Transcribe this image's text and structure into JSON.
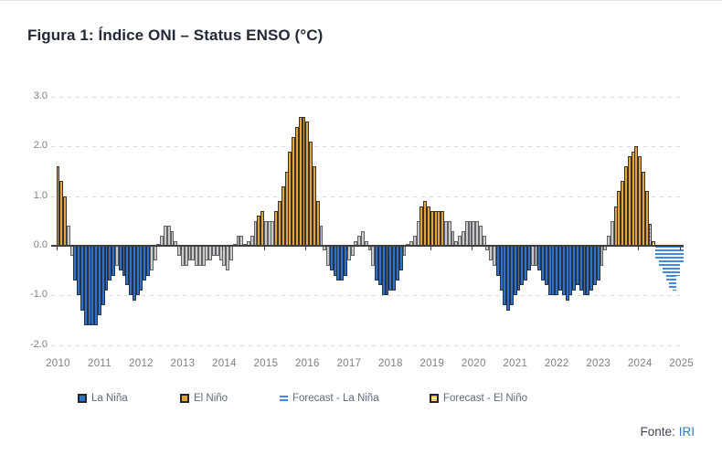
{
  "header": {
    "title": "Figura 1: Índice ONI – Status ENSO (°C)"
  },
  "legend": {
    "items": [
      {
        "label": "La Niña",
        "code": "la"
      },
      {
        "label": "El Niño",
        "code": "el"
      },
      {
        "label": "Forecast - La Niña",
        "code": "fla"
      },
      {
        "label": "Forecast - El Niño",
        "code": "fel"
      }
    ]
  },
  "source": {
    "label": "Fonte:",
    "name": "IRI"
  },
  "colors": {
    "la_nina": "#2F71C8",
    "el_nino": "#E2A43C",
    "neutral": "#CBCBCB",
    "forecast_la_nina": "#4287E8",
    "forecast_el_nino": "#EFBF2E",
    "zero_line": "#3f3f3f",
    "grid": "#d9dbdd"
  },
  "chart_data": {
    "type": "bar",
    "title": "Índice ONI – Status ENSO (°C)",
    "x_start": "2010",
    "x_tick_labels": [
      "2010",
      "2011",
      "2012",
      "2013",
      "2014",
      "2015",
      "2016",
      "2017",
      "2018",
      "2019",
      "2020",
      "2021",
      "2022",
      "2023",
      "2024",
      "2025"
    ],
    "y_tick_labels": [
      "3.0",
      "2.0",
      "1.0",
      "0.0",
      "-1.0",
      "-2.0"
    ],
    "y_tick_values": [
      3,
      2,
      1,
      0,
      -1,
      -2
    ],
    "ylim": [
      -2.0,
      3.0
    ],
    "grid": "dashed horizontal",
    "legend_position": "bottom",
    "bar_codes": {
      "el": "El Niño",
      "la": "La Niña",
      "n": "neutral",
      "fel": "Forecast - El Niño",
      "fla": "Forecast - La Niña"
    },
    "bars": [
      [
        1.6,
        "el"
      ],
      [
        1.3,
        "el"
      ],
      [
        1.0,
        "el"
      ],
      [
        0.4,
        "n"
      ],
      [
        -0.2,
        "n"
      ],
      [
        -0.7,
        "la"
      ],
      [
        -1.0,
        "la"
      ],
      [
        -1.3,
        "la"
      ],
      [
        -1.6,
        "la"
      ],
      [
        -1.6,
        "la"
      ],
      [
        -1.6,
        "la"
      ],
      [
        -1.6,
        "la"
      ],
      [
        -1.4,
        "la"
      ],
      [
        -1.2,
        "la"
      ],
      [
        -0.9,
        "la"
      ],
      [
        -0.7,
        "la"
      ],
      [
        -0.6,
        "la"
      ],
      [
        -0.4,
        "n"
      ],
      [
        -0.5,
        "la"
      ],
      [
        -0.6,
        "la"
      ],
      [
        -0.8,
        "la"
      ],
      [
        -1.0,
        "la"
      ],
      [
        -1.1,
        "la"
      ],
      [
        -1.0,
        "la"
      ],
      [
        -0.9,
        "la"
      ],
      [
        -0.7,
        "la"
      ],
      [
        -0.6,
        "la"
      ],
      [
        -0.5,
        "n"
      ],
      [
        -0.3,
        "n"
      ],
      [
        0.0,
        "n"
      ],
      [
        0.2,
        "n"
      ],
      [
        0.4,
        "n"
      ],
      [
        0.4,
        "n"
      ],
      [
        0.3,
        "n"
      ],
      [
        0.1,
        "n"
      ],
      [
        -0.2,
        "n"
      ],
      [
        -0.4,
        "n"
      ],
      [
        -0.4,
        "n"
      ],
      [
        -0.3,
        "n"
      ],
      [
        -0.3,
        "n"
      ],
      [
        -0.4,
        "n"
      ],
      [
        -0.4,
        "n"
      ],
      [
        -0.4,
        "n"
      ],
      [
        -0.3,
        "n"
      ],
      [
        -0.3,
        "n"
      ],
      [
        -0.2,
        "n"
      ],
      [
        -0.2,
        "n"
      ],
      [
        -0.3,
        "n"
      ],
      [
        -0.4,
        "n"
      ],
      [
        -0.5,
        "n"
      ],
      [
        -0.3,
        "n"
      ],
      [
        0.0,
        "n"
      ],
      [
        0.2,
        "n"
      ],
      [
        0.2,
        "n"
      ],
      [
        0.0,
        "n"
      ],
      [
        0.1,
        "n"
      ],
      [
        0.2,
        "n"
      ],
      [
        0.5,
        "n"
      ],
      [
        0.6,
        "el"
      ],
      [
        0.7,
        "el"
      ],
      [
        0.5,
        "n"
      ],
      [
        0.5,
        "n"
      ],
      [
        0.5,
        "n"
      ],
      [
        0.7,
        "el"
      ],
      [
        0.9,
        "el"
      ],
      [
        1.2,
        "el"
      ],
      [
        1.5,
        "el"
      ],
      [
        1.9,
        "el"
      ],
      [
        2.2,
        "el"
      ],
      [
        2.4,
        "el"
      ],
      [
        2.6,
        "el"
      ],
      [
        2.6,
        "el"
      ],
      [
        2.5,
        "el"
      ],
      [
        2.1,
        "el"
      ],
      [
        1.6,
        "el"
      ],
      [
        0.9,
        "el"
      ],
      [
        0.4,
        "n"
      ],
      [
        -0.1,
        "n"
      ],
      [
        -0.4,
        "n"
      ],
      [
        -0.5,
        "la"
      ],
      [
        -0.6,
        "la"
      ],
      [
        -0.7,
        "la"
      ],
      [
        -0.7,
        "la"
      ],
      [
        -0.6,
        "la"
      ],
      [
        -0.3,
        "n"
      ],
      [
        -0.2,
        "n"
      ],
      [
        0.1,
        "n"
      ],
      [
        0.2,
        "n"
      ],
      [
        0.3,
        "n"
      ],
      [
        0.1,
        "n"
      ],
      [
        -0.1,
        "n"
      ],
      [
        -0.4,
        "n"
      ],
      [
        -0.7,
        "la"
      ],
      [
        -0.8,
        "la"
      ],
      [
        -1.0,
        "la"
      ],
      [
        -1.0,
        "la"
      ],
      [
        -0.9,
        "la"
      ],
      [
        -0.9,
        "la"
      ],
      [
        -0.7,
        "la"
      ],
      [
        -0.5,
        "la"
      ],
      [
        -0.2,
        "n"
      ],
      [
        0.0,
        "n"
      ],
      [
        0.1,
        "n"
      ],
      [
        0.2,
        "n"
      ],
      [
        0.5,
        "n"
      ],
      [
        0.8,
        "el"
      ],
      [
        0.9,
        "el"
      ],
      [
        0.8,
        "el"
      ],
      [
        0.7,
        "el"
      ],
      [
        0.7,
        "el"
      ],
      [
        0.7,
        "el"
      ],
      [
        0.7,
        "el"
      ],
      [
        0.5,
        "n"
      ],
      [
        0.5,
        "n"
      ],
      [
        0.3,
        "n"
      ],
      [
        0.1,
        "n"
      ],
      [
        0.2,
        "n"
      ],
      [
        0.3,
        "n"
      ],
      [
        0.5,
        "n"
      ],
      [
        0.5,
        "n"
      ],
      [
        0.5,
        "n"
      ],
      [
        0.5,
        "n"
      ],
      [
        0.4,
        "n"
      ],
      [
        0.2,
        "n"
      ],
      [
        -0.1,
        "n"
      ],
      [
        -0.3,
        "n"
      ],
      [
        -0.4,
        "n"
      ],
      [
        -0.6,
        "la"
      ],
      [
        -0.9,
        "la"
      ],
      [
        -1.2,
        "la"
      ],
      [
        -1.3,
        "la"
      ],
      [
        -1.2,
        "la"
      ],
      [
        -1.0,
        "la"
      ],
      [
        -0.9,
        "la"
      ],
      [
        -0.8,
        "la"
      ],
      [
        -0.7,
        "la"
      ],
      [
        -0.5,
        "la"
      ],
      [
        -0.4,
        "n"
      ],
      [
        -0.4,
        "n"
      ],
      [
        -0.5,
        "la"
      ],
      [
        -0.7,
        "la"
      ],
      [
        -0.8,
        "la"
      ],
      [
        -1.0,
        "la"
      ],
      [
        -1.0,
        "la"
      ],
      [
        -1.0,
        "la"
      ],
      [
        -0.9,
        "la"
      ],
      [
        -1.0,
        "la"
      ],
      [
        -1.1,
        "la"
      ],
      [
        -1.0,
        "la"
      ],
      [
        -0.9,
        "la"
      ],
      [
        -0.8,
        "la"
      ],
      [
        -0.9,
        "la"
      ],
      [
        -1.0,
        "la"
      ],
      [
        -1.0,
        "la"
      ],
      [
        -0.9,
        "la"
      ],
      [
        -0.8,
        "la"
      ],
      [
        -0.7,
        "la"
      ],
      [
        -0.4,
        "n"
      ],
      [
        -0.1,
        "n"
      ],
      [
        0.2,
        "n"
      ],
      [
        0.5,
        "n"
      ],
      [
        0.8,
        "el"
      ],
      [
        1.1,
        "el"
      ],
      [
        1.3,
        "el"
      ],
      [
        1.6,
        "el"
      ],
      [
        1.8,
        "el"
      ],
      [
        1.9,
        "el"
      ],
      [
        2.0,
        "el"
      ],
      [
        1.8,
        "el"
      ],
      [
        1.5,
        "el"
      ],
      [
        1.1,
        "el"
      ],
      [
        0.45,
        "fel"
      ],
      [
        0.1,
        "fel"
      ],
      [
        -0.25,
        "fla"
      ],
      [
        -0.4,
        "fla"
      ],
      [
        -0.55,
        "fla"
      ],
      [
        -0.7,
        "fla"
      ],
      [
        -0.85,
        "fla"
      ],
      [
        -0.9,
        "fla"
      ],
      [
        -0.6,
        "fla"
      ],
      [
        -0.35,
        "fla"
      ]
    ]
  }
}
